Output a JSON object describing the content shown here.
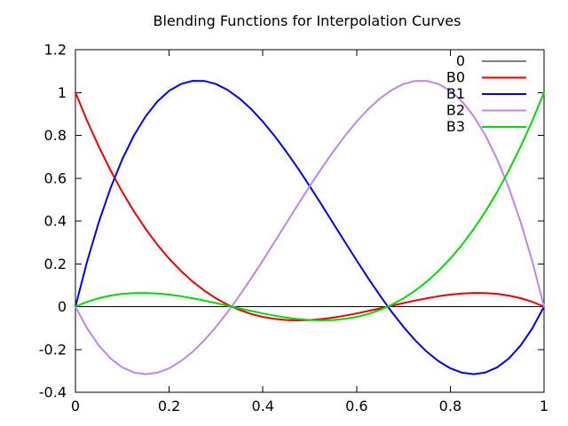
{
  "chart_data": {
    "type": "line",
    "title": "Blending Functions for Interpolation Curves",
    "xlabel": "",
    "ylabel": "",
    "xlim": [
      0,
      1
    ],
    "ylim": [
      -0.4,
      1.2
    ],
    "xticks": [
      0,
      0.2,
      0.4,
      0.6,
      0.8,
      1
    ],
    "xtick_labels": [
      "0",
      "0.2",
      "0.4",
      "0.6",
      "0.8",
      "1"
    ],
    "yticks": [
      -0.4,
      -0.2,
      0,
      0.2,
      0.4,
      0.6,
      0.8,
      1,
      1.2
    ],
    "ytick_labels": [
      "-0.4",
      "-0.2",
      "0",
      "0.2",
      "0.4",
      "0.6",
      "0.8",
      "1",
      "1.2"
    ],
    "grid": false,
    "legend_position": "top-right",
    "background_color": "#ffffff",
    "border_color": "#000000",
    "x": [
      0,
      0.025,
      0.05,
      0.075,
      0.1,
      0.125,
      0.15,
      0.175,
      0.2,
      0.225,
      0.25,
      0.275,
      0.3,
      0.325,
      0.35,
      0.375,
      0.4,
      0.425,
      0.45,
      0.475,
      0.5,
      0.525,
      0.55,
      0.575,
      0.6,
      0.625,
      0.65,
      0.675,
      0.7,
      0.725,
      0.75,
      0.775,
      0.8,
      0.825,
      0.85,
      0.875,
      0.9,
      0.925,
      0.95,
      0.975,
      1
    ],
    "series": [
      {
        "name": "0",
        "color": "#000000",
        "line_width": 1,
        "values": [
          0,
          0,
          0,
          0,
          0,
          0,
          0,
          0,
          0,
          0,
          0,
          0,
          0,
          0,
          0,
          0,
          0,
          0,
          0,
          0,
          0,
          0,
          0,
          0,
          0,
          0,
          0,
          0,
          0,
          0,
          0,
          0,
          0,
          0,
          0,
          0,
          0,
          0,
          0,
          0,
          0
        ]
      },
      {
        "name": "B0",
        "color": "#ee0000",
        "line_width": 2,
        "values": [
          1,
          0.868,
          0.7469,
          0.6362,
          0.5355,
          0.4443,
          0.3623,
          0.289,
          0.224,
          0.1669,
          0.1172,
          0.0745,
          0.0385,
          0.0086,
          -0.0154,
          -0.0342,
          -0.048,
          -0.0573,
          -0.0626,
          -0.0642,
          -0.0625,
          -0.058,
          -0.0512,
          -0.0424,
          -0.032,
          -0.0205,
          -0.0083,
          0.0042,
          0.0165,
          0.0283,
          0.0391,
          0.0484,
          0.056,
          0.0613,
          0.0639,
          0.0635,
          0.0595,
          0.0516,
          0.0393,
          0.0223,
          0
        ]
      },
      {
        "name": "B1",
        "color": "#0000ee",
        "line_width": 2,
        "values": [
          0,
          0.2112,
          0.3954,
          0.5541,
          0.6885,
          0.7998,
          0.8893,
          0.9583,
          1.008,
          1.0397,
          1.0547,
          1.0542,
          1.0395,
          1.0119,
          0.9726,
          0.9229,
          0.864,
          0.7973,
          0.7239,
          0.6453,
          0.5625,
          0.4769,
          0.3898,
          0.3024,
          0.216,
          0.1318,
          0.0512,
          -0.0247,
          -0.0945,
          -0.157,
          -0.2109,
          -0.255,
          -0.288,
          -0.3086,
          -0.3156,
          -0.3076,
          -0.2835,
          -0.2419,
          -0.1817,
          -0.1015,
          0
        ]
      },
      {
        "name": "B2",
        "color": "#bf85ea",
        "line_width": 2,
        "values": [
          0,
          -0.1015,
          -0.1817,
          -0.2419,
          -0.2835,
          -0.3076,
          -0.3156,
          -0.3086,
          -0.288,
          -0.255,
          -0.2109,
          -0.157,
          -0.0945,
          -0.0247,
          0.0512,
          0.1318,
          0.216,
          0.3024,
          0.3898,
          0.4769,
          0.5625,
          0.6453,
          0.7239,
          0.7973,
          0.864,
          0.9229,
          0.9726,
          1.0119,
          1.0395,
          1.0542,
          1.0547,
          1.0397,
          1.008,
          0.9583,
          0.8893,
          0.7998,
          0.6885,
          0.5541,
          0.3954,
          0.2112,
          0
        ]
      },
      {
        "name": "B3",
        "color": "#00dc00",
        "line_width": 2,
        "values": [
          0,
          0.0223,
          0.0393,
          0.0516,
          0.0595,
          0.0635,
          0.0639,
          0.0613,
          0.056,
          0.0484,
          0.0391,
          0.0283,
          0.0165,
          0.0042,
          -0.0083,
          -0.0205,
          -0.032,
          -0.0424,
          -0.0512,
          -0.058,
          -0.0625,
          -0.0642,
          -0.0626,
          -0.0573,
          -0.048,
          -0.0342,
          -0.0154,
          0.0086,
          0.0385,
          0.0745,
          0.1172,
          0.1669,
          0.224,
          0.289,
          0.3623,
          0.4443,
          0.5355,
          0.6362,
          0.7469,
          0.868,
          1
        ]
      }
    ]
  }
}
